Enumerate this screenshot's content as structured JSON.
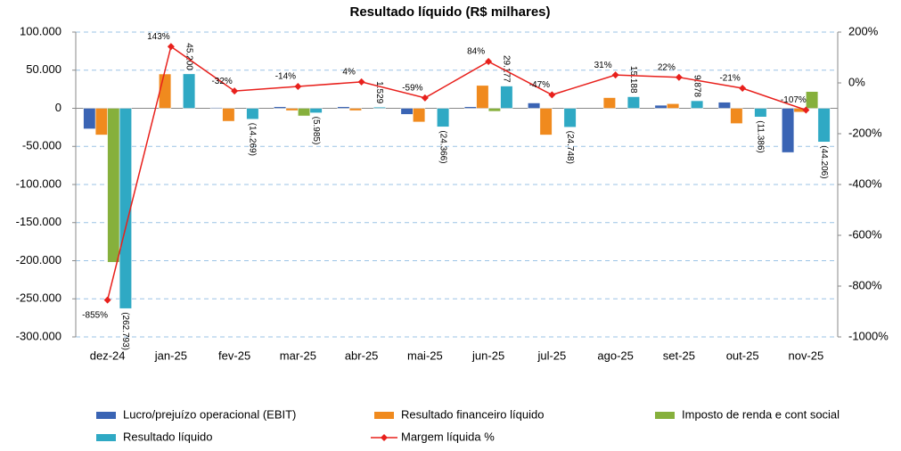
{
  "chart_data": {
    "type": "bar-line",
    "title": "Resultado líquido (R$ milhares)",
    "categories": [
      "dez-24",
      "jan-25",
      "fev-25",
      "mar-25",
      "abr-25",
      "mai-25",
      "jun-25",
      "jul-25",
      "ago-25",
      "set-25",
      "out-25",
      "nov-25"
    ],
    "series": [
      {
        "name": "Lucro/prejuízo operacional (EBIT)",
        "type": "bar",
        "color": "#3a64b4",
        "values": [
          -27000,
          0,
          1000,
          2000,
          2000,
          -8000,
          2000,
          7000,
          0,
          4000,
          8000,
          -58000
        ]
      },
      {
        "name": "Resultado financeiro líquido",
        "type": "bar",
        "color": "#f08a1e",
        "values": [
          -35000,
          45000,
          -17000,
          -3000,
          -3000,
          -18000,
          30000,
          -35000,
          14000,
          6000,
          -20000,
          -5000
        ]
      },
      {
        "name": "Imposto de renda e cont social",
        "type": "bar",
        "color": "#86b03c",
        "values": [
          -202000,
          0,
          0,
          -10000,
          0,
          0,
          -4000,
          0,
          0,
          0,
          0,
          22000
        ]
      },
      {
        "name": "Resultado líquido",
        "type": "bar",
        "color": "#2fa9c4",
        "values": [
          -262793,
          45200,
          -14269,
          -5985,
          1529,
          -24366,
          29177,
          -24748,
          15188,
          9878,
          -11386,
          -44206
        ],
        "value_labels": [
          "(262.793)",
          "45.200",
          "(14.269)",
          "(5.985)",
          "1.529",
          "(24.366)",
          "29.177",
          "(24.748)",
          "15.188",
          "9.878",
          "(11.386)",
          "(44.206)"
        ]
      },
      {
        "name": "Margem líquida %",
        "type": "line",
        "axis": "y2",
        "color": "#e8201c",
        "values": [
          -855,
          143,
          -32,
          -14,
          4,
          -59,
          84,
          -47,
          31,
          22,
          -21,
          -107
        ],
        "value_labels": [
          "-855%",
          "143%",
          "-32%",
          "-14%",
          "4%",
          "-59%",
          "84%",
          "-47%",
          "31%",
          "22%",
          "-21%",
          "-107%"
        ]
      }
    ],
    "ylim": [
      -300000,
      100000
    ],
    "yticks": [
      {
        "value": -300000,
        "label": "-300.000"
      },
      {
        "value": -250000,
        "label": "-250.000"
      },
      {
        "value": -200000,
        "label": "-200.000"
      },
      {
        "value": -150000,
        "label": "-150.000"
      },
      {
        "value": -100000,
        "label": "-100.000"
      },
      {
        "value": -50000,
        "label": "-50.000"
      },
      0,
      {
        "value": 50000,
        "label": "50.000"
      },
      {
        "value": 100000,
        "label": "100.000"
      }
    ],
    "y2lim": [
      -1000,
      200
    ],
    "y2ticks": [
      {
        "value": -1000,
        "label": "-1000%"
      },
      {
        "value": -800,
        "label": "-800%"
      },
      {
        "value": -600,
        "label": "-600%"
      },
      {
        "value": -400,
        "label": "-400%"
      },
      {
        "value": -200,
        "label": "-200%"
      },
      {
        "value": 0,
        "label": "0%"
      },
      {
        "value": 200,
        "label": "200%"
      }
    ],
    "grid": true,
    "legend": "bottom"
  }
}
